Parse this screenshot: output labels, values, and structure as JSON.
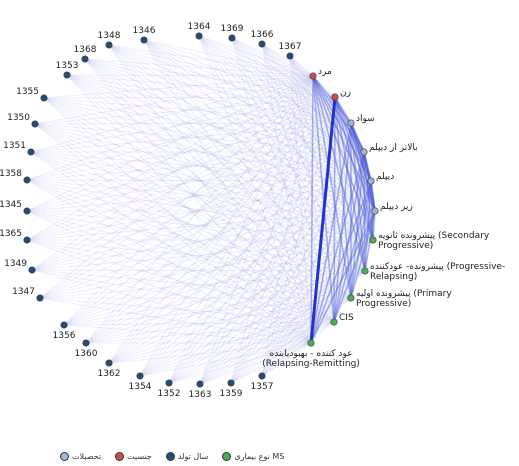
{
  "legend": [
    {
      "label": "تحصیلات",
      "color": "#9bb9d6"
    },
    {
      "label": "جنسیت",
      "color": "#d24b4b"
    },
    {
      "label": "سال تولد",
      "color": "#1f4e79"
    },
    {
      "label": "نوع بیماری MS",
      "color": "#4caf50"
    }
  ],
  "nodes": {
    "year": [
      "1346",
      "1364",
      "1369",
      "1366",
      "1367",
      "1348",
      "1368",
      "1353",
      "1355",
      "1350",
      "1351",
      "1358",
      "1345",
      "1365",
      "1349",
      "1347",
      "1356",
      "1360",
      "1362",
      "1354",
      "1352",
      "1363",
      "1359",
      "1357"
    ],
    "gender": [
      "مرد",
      "زن"
    ],
    "education": [
      "سواد",
      "بالاتر از دیپلم",
      "دیپلم",
      "زیر دیپلم"
    ],
    "ms_type": [
      {
        "id": "ms_sp",
        "lines": [
          "پیشرونده ثانویه (Secondary",
          "Progressive)"
        ]
      },
      {
        "id": "ms_pr",
        "lines": [
          "پیشرونده- عودکننده (Progressive-",
          "Relapsing)"
        ]
      },
      {
        "id": "ms_pp",
        "lines": [
          "پیشرونده اولیه (Primary",
          "Progressive)"
        ]
      },
      {
        "id": "ms_cis",
        "lines": [
          "CIS"
        ]
      },
      {
        "id": "ms_rr",
        "lines": [
          "عود کننده - بهبودیابنده",
          "(Relapsing-Remitting)"
        ]
      }
    ]
  },
  "colors": {
    "year": "#1f4e79",
    "gender": "#d24b4b",
    "education": "#9bb9d6",
    "ms": "#4caf50",
    "edge": "#4a5bd6"
  },
  "heavy_edges": [
    {
      "from": "زن",
      "to": "ms_rr"
    }
  ]
}
